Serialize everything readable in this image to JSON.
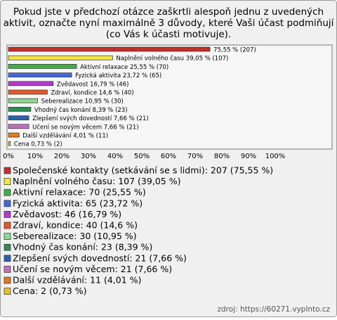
{
  "chart_data": {
    "type": "bar",
    "orientation": "horizontal",
    "title_lines": [
      "Pokud jste v předchozí otázce zaškrtli alespoň jednu z uvedených",
      "aktivit, označte nyní maximálně 3 důvody, které Vaši účast podmiňují",
      "(co Vás k účasti motivuje)."
    ],
    "categories": [
      "Společenské kontakty (setkávání se s lidmi): 207 (75,55 %)",
      "Naplnění volného času: 107 (39,05 %)",
      "Aktivní relaxace: 70 (25,55 %)",
      "Fyzická aktivita: 65 (23,72 %)",
      "Zvědavost: 46 (16,79 %)",
      "Zdraví, kondice: 40 (14,6 %)",
      "Seberealizace: 30 (10,95 %)",
      "Vhodný čas konání: 23 (8,39 %)",
      "Zlepšení svých dovedností: 21 (7,66 %)",
      "Učení se novým věcem: 21 (7,66 %)",
      "Další vzdělávání: 11 (4,01 %)",
      "Cena: 2 (0,73 %)"
    ],
    "values": [
      75.55,
      39.05,
      25.55,
      23.72,
      16.79,
      14.6,
      10.95,
      8.39,
      7.66,
      7.66,
      4.01,
      0.73
    ],
    "value_labels": [
      "75,55 % (207)",
      "Naplnění volného času 39,05 % (107)",
      "Aktivní relaxace 25,55 % (70)",
      "Fyzická aktivita 23,72 % (65)",
      "Zvědavost 16,79 % (46)",
      "Zdraví, kondice 14,6 % (40)",
      "Seberealizace 10,95 % (30)",
      "Vhodný čas konání 8,39 % (23)",
      "Zlepšení svých dovedností 7,66 % (21)",
      "Učení se novým věcem 7,66 % (21)",
      "Další vzdělávání 4,01 % (11)",
      "Cena 0,73 % (2)"
    ],
    "colors": [
      "#c0302a",
      "#f2e640",
      "#3cb043",
      "#4169e1",
      "#b03cc8",
      "#e8562a",
      "#8fd88f",
      "#2e8b57",
      "#2c5fa8",
      "#c070c0",
      "#e07a20",
      "#e8c030"
    ],
    "xlim": [
      0,
      100
    ],
    "xticks": [
      {
        "value": 0,
        "label": "0%"
      },
      {
        "value": 10,
        "label": "10%"
      },
      {
        "value": 20,
        "label": "20%"
      },
      {
        "value": 30,
        "label": "30%"
      },
      {
        "value": 40,
        "label": "40%"
      },
      {
        "value": 50,
        "label": "50%"
      },
      {
        "value": 60,
        "label": "60%"
      },
      {
        "value": 70,
        "label": "70%"
      },
      {
        "value": 80,
        "label": "80%"
      },
      {
        "value": 90,
        "label": "90%"
      },
      {
        "value": 100,
        "label": "100%"
      }
    ],
    "source": "zdroj: https://60271.vyplnto.cz"
  }
}
